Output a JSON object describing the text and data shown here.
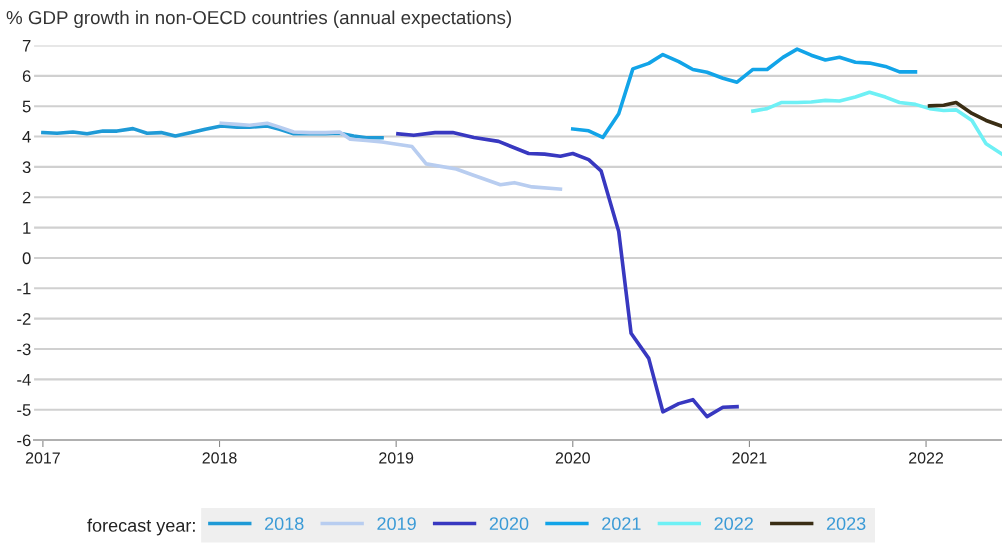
{
  "chart_data": {
    "type": "line",
    "title": "% GDP growth in non-OECD countries (annual expectations)",
    "legend_title": "forecast year:",
    "legend": "bottom",
    "grid": "y",
    "marker": "none",
    "line_style": "solid",
    "xlim": [
      2016.95,
      2022.43
    ],
    "xticks": [
      2017,
      2018,
      2019,
      2020,
      2021,
      2022
    ],
    "ylim": [
      -6,
      7
    ],
    "yticks": [
      -6,
      -5,
      -4,
      -3,
      -2,
      -1,
      0,
      1,
      2,
      3,
      4,
      5,
      6,
      7
    ],
    "series": [
      {
        "name": "2018",
        "color": "#1f9ad6",
        "x": [
          2017.0,
          2017.08,
          2017.17,
          2017.25,
          2017.34,
          2017.42,
          2017.51,
          2017.59,
          2017.67,
          2017.75,
          2017.84,
          2017.92,
          2018.01,
          2018.1,
          2018.17,
          2018.27,
          2018.34,
          2018.42,
          2018.51,
          2018.6,
          2018.68,
          2018.76,
          2018.83,
          2018.92
        ],
        "values": [
          4.13,
          4.11,
          4.15,
          4.09,
          4.18,
          4.18,
          4.26,
          4.11,
          4.13,
          4.02,
          4.13,
          4.24,
          4.35,
          4.31,
          4.31,
          4.35,
          4.24,
          4.09,
          4.09,
          4.09,
          4.11,
          4.02,
          3.96,
          3.96
        ]
      },
      {
        "name": "2019",
        "color": "#b8cdf0",
        "x": [
          2018.01,
          2018.1,
          2018.17,
          2018.27,
          2018.34,
          2018.42,
          2018.51,
          2018.6,
          2018.68,
          2018.74,
          2018.83,
          2018.92,
          2019.09,
          2019.17,
          2019.34,
          2019.43,
          2019.59,
          2019.67,
          2019.77,
          2019.93
        ],
        "values": [
          4.44,
          4.4,
          4.37,
          4.44,
          4.31,
          4.15,
          4.13,
          4.13,
          4.15,
          3.91,
          3.87,
          3.82,
          3.67,
          3.1,
          2.93,
          2.74,
          2.41,
          2.48,
          2.34,
          2.27
        ]
      },
      {
        "name": "2020",
        "color": "#3838c0",
        "x": [
          2019.01,
          2019.1,
          2019.22,
          2019.32,
          2019.44,
          2019.58,
          2019.75,
          2019.84,
          2019.93,
          2020.0,
          2020.09,
          2020.16,
          2020.26,
          2020.33,
          2020.43,
          2020.51,
          2020.6,
          2020.68,
          2020.76,
          2020.85,
          2020.93
        ],
        "values": [
          4.09,
          4.04,
          4.13,
          4.13,
          3.97,
          3.84,
          3.44,
          3.42,
          3.35,
          3.44,
          3.24,
          2.87,
          0.87,
          -2.48,
          -3.31,
          -5.07,
          -4.8,
          -4.67,
          -5.23,
          -4.92,
          -4.9
        ]
      },
      {
        "name": "2021",
        "color": "#12a4e8",
        "x": [
          2020.0,
          2020.09,
          2020.17,
          2020.26,
          2020.34,
          2020.43,
          2020.51,
          2020.6,
          2020.68,
          2020.76,
          2020.85,
          2020.93,
          2021.02,
          2021.1,
          2021.19,
          2021.27,
          2021.35,
          2021.43,
          2021.51,
          2021.6,
          2021.68,
          2021.77,
          2021.85,
          2021.94
        ],
        "values": [
          4.25,
          4.19,
          3.97,
          4.75,
          6.23,
          6.41,
          6.7,
          6.47,
          6.21,
          6.12,
          5.92,
          5.79,
          6.21,
          6.21,
          6.61,
          6.88,
          6.68,
          6.52,
          6.61,
          6.45,
          6.42,
          6.31,
          6.13,
          6.13
        ]
      },
      {
        "name": "2022",
        "color": "#6ef0f5",
        "x": [
          2021.02,
          2021.1,
          2021.18,
          2021.27,
          2021.35,
          2021.43,
          2021.51,
          2021.6,
          2021.68,
          2021.77,
          2021.85,
          2021.94,
          2022.02,
          2022.1,
          2022.17,
          2022.26,
          2022.34,
          2022.43
        ],
        "values": [
          4.84,
          4.92,
          5.12,
          5.12,
          5.14,
          5.19,
          5.17,
          5.3,
          5.46,
          5.3,
          5.12,
          5.06,
          4.92,
          4.86,
          4.88,
          4.53,
          3.76,
          3.42
        ]
      },
      {
        "name": "2023",
        "color": "#3a2d14",
        "x": [
          2022.02,
          2022.1,
          2022.17,
          2022.26,
          2022.34,
          2022.43
        ],
        "values": [
          5.01,
          5.03,
          5.12,
          4.76,
          4.53,
          4.34
        ]
      }
    ]
  }
}
